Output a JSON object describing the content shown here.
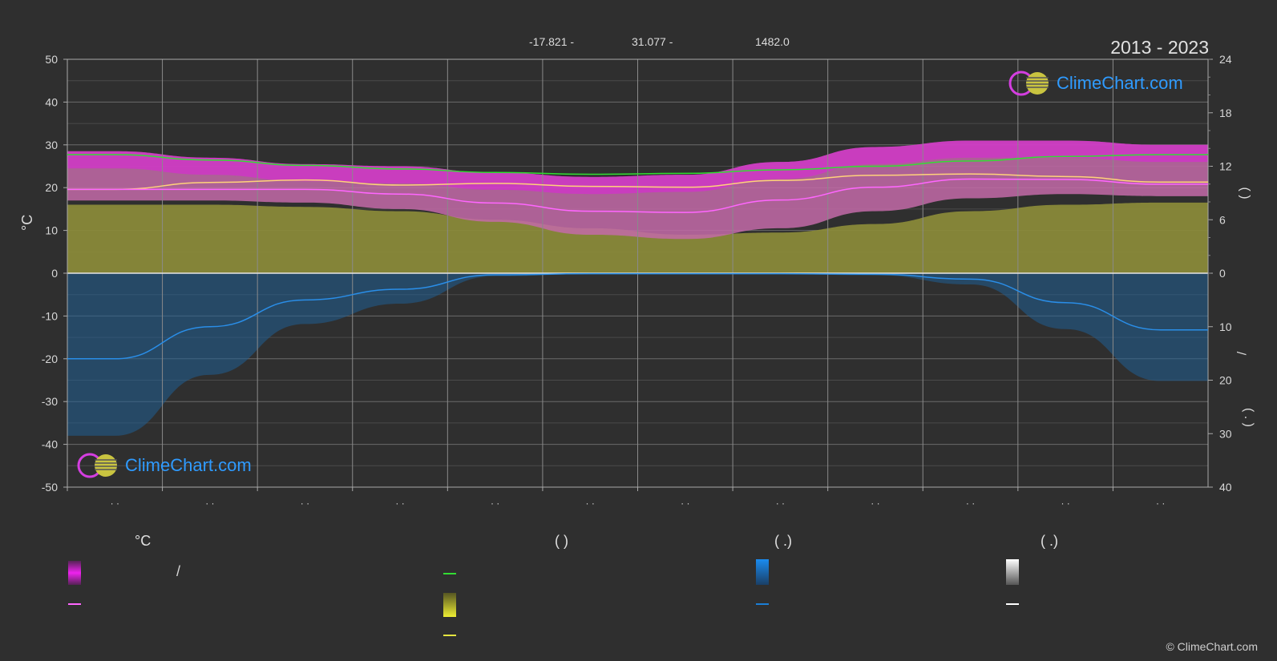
{
  "header": {
    "min_temp": "-17.821 -",
    "max_temp": "31.077 -",
    "elevation": "1482.0",
    "years": "2013 - 2023"
  },
  "logo": {
    "text": "ClimeChart.com"
  },
  "copyright": "© ClimeChart.com",
  "legend": {
    "col1_head": "°C",
    "col2_head": "(          )",
    "col3_head": "(    .)",
    "col4_head": "(    .)",
    "slash": "/"
  },
  "right_axis_labels": {
    "upper": "(    )",
    "lower": "( . )",
    "slash": "/"
  },
  "colors": {
    "background": "#2f2f2f",
    "temp_range": "#e020e0",
    "temp_avg": "#ff66ff",
    "sunshine": "#e5e540",
    "daylight": "#33dd33",
    "precip": "#1a7fd6",
    "snow": "#ffffff",
    "avg_max": "#ffd27a"
  },
  "chart_data": {
    "type": "area",
    "x_ticks": [
      "· ·",
      "· ·",
      "· ·",
      "· ·",
      "· ·",
      "· ·",
      "· ·",
      "· ·",
      "· ·",
      "· ·",
      "· ·",
      "· ·"
    ],
    "ylabel_left": "°C",
    "left_axis": {
      "min": -50,
      "max": 50,
      "ticks": [
        50,
        40,
        30,
        20,
        10,
        0,
        -10,
        -20,
        -30,
        -40,
        -50
      ]
    },
    "right_axis_upper": {
      "min": 0,
      "max": 24,
      "ticks": [
        24,
        18,
        12,
        6,
        0
      ]
    },
    "right_axis_lower": {
      "min": 0,
      "max": 40,
      "ticks": [
        10,
        20,
        30,
        40
      ]
    },
    "grid": true,
    "months": 12,
    "series": [
      {
        "key": "daylight_hours",
        "axis": "right_upper",
        "values": [
          13.3,
          12.7,
          12.1,
          11.7,
          11.3,
          11.1,
          11.2,
          11.6,
          12.0,
          12.6,
          13.1,
          13.3
        ]
      },
      {
        "key": "avg_max_temp",
        "axis": "left",
        "values": [
          19.6,
          21.2,
          21.8,
          20.6,
          21.0,
          20.3,
          20.1,
          21.7,
          22.9,
          23.2,
          22.6,
          21.3
        ]
      },
      {
        "key": "avg_temp",
        "axis": "left",
        "values": [
          19.6,
          19.6,
          19.6,
          18.5,
          16.4,
          14.5,
          14.2,
          17.1,
          20.1,
          22.0,
          21.9,
          20.8
        ]
      },
      {
        "key": "sunshine_top",
        "axis": "left",
        "values": [
          16.0,
          16.0,
          15.5,
          14.5,
          12.5,
          10.5,
          9.0,
          9.5,
          11.5,
          14.5,
          16.0,
          16.5
        ]
      },
      {
        "key": "temp_range_max",
        "axis": "left",
        "values": [
          28.5,
          27.0,
          25.5,
          25.0,
          23.5,
          22.5,
          23.0,
          26.0,
          29.5,
          31.0,
          31.0,
          30.0
        ]
      },
      {
        "key": "temp_range_min",
        "axis": "left",
        "values": [
          17.0,
          17.0,
          16.5,
          15.0,
          12.0,
          9.0,
          8.0,
          10.5,
          14.5,
          17.5,
          18.5,
          18.0
        ]
      },
      {
        "key": "precipitation_mm_per_day",
        "axis": "right_lower",
        "values": [
          16.0,
          10.0,
          5.0,
          3.0,
          0.3,
          0.1,
          0.1,
          0.1,
          0.2,
          1.1,
          5.5,
          10.6
        ]
      }
    ]
  }
}
